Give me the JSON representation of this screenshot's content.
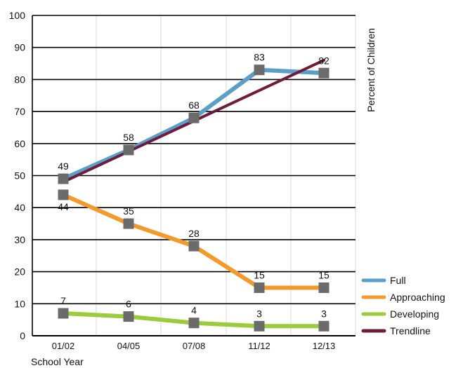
{
  "chart_data": {
    "type": "line",
    "categories": [
      "01/02",
      "04/05",
      "07/08",
      "11/12",
      "12/13"
    ],
    "ylim": [
      0,
      100
    ],
    "yticks": [
      0,
      10,
      20,
      30,
      40,
      50,
      60,
      70,
      80,
      90,
      100
    ],
    "xlabel": "School Year",
    "ylabel": "Percent of Children",
    "legend_position": "bottom-right",
    "series": [
      {
        "name": "Full",
        "values": [
          49,
          58,
          68,
          83,
          82
        ],
        "labels": [
          "49",
          "58",
          "68",
          "83",
          "82"
        ],
        "color": "#5b9ec7",
        "markers": true
      },
      {
        "name": "Approaching",
        "values": [
          44,
          35,
          28,
          15,
          15
        ],
        "labels": [
          "44",
          "35",
          "28",
          "15",
          "15"
        ],
        "color": "#f39a2a",
        "markers": true
      },
      {
        "name": "Developing",
        "values": [
          7,
          6,
          4,
          3,
          3
        ],
        "labels": [
          "7",
          "6",
          "4",
          "3",
          "3"
        ],
        "color": "#9ccb3b",
        "markers": true
      },
      {
        "name": "Trendline",
        "values": [
          48,
          57.5,
          67,
          76.5,
          86
        ],
        "labels": [],
        "color": "#6e1b3c",
        "markers": false
      }
    ],
    "marker_color": "#6b6b6b"
  }
}
